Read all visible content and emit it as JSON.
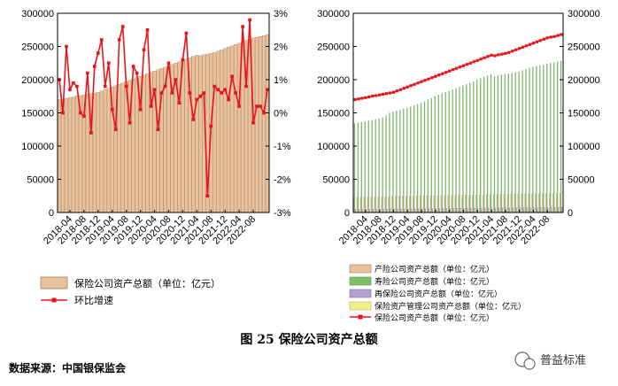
{
  "caption": "图 25   保险公司资产总额",
  "source": "数据来源：中国银保监会",
  "watermark": "普益标准",
  "colors": {
    "total_bar": "#e9c29b",
    "total_bar_edge": "#9c7f63",
    "growth_line": "#e8141c",
    "property": "#e9c29b",
    "life": "#7fbf6a",
    "reinsurance": "#b1a2cf",
    "asset_mgmt": "#f2f08a",
    "frame": "#000000"
  },
  "chart_data": [
    {
      "type": "bar",
      "title": "",
      "x_tick_labels": [
        "2018-04",
        "2018-08",
        "2018-12",
        "2019-04",
        "2019-08",
        "2019-12",
        "2020-04",
        "2020-08",
        "2020-12",
        "2021-04",
        "2021-08",
        "2021-12",
        "2022-04",
        "2022-08"
      ],
      "x_start": "2018-01",
      "y_left": {
        "ticks": [
          0,
          50000,
          100000,
          150000,
          200000,
          250000,
          300000
        ],
        "ylim": [
          0,
          300000
        ]
      },
      "y_right": {
        "ticks": [
          "-3%",
          "-2%",
          "-1%",
          "0%",
          "1%",
          "2%",
          "3%"
        ],
        "ylim": [
          -3,
          3
        ]
      },
      "legend": [
        "保险公司资产总额（单位：亿元）",
        "环比增速"
      ],
      "series": [
        {
          "name": "保险公司资产总额（单位：亿元）",
          "type": "bar",
          "values": [
            170000,
            171000,
            172000,
            173000,
            174000,
            175500,
            176000,
            177000,
            178000,
            179000,
            180000,
            181000,
            183000,
            185000,
            187000,
            189000,
            191000,
            193000,
            195000,
            197000,
            199000,
            201000,
            203000,
            205000,
            207000,
            209000,
            211000,
            213000,
            215000,
            217000,
            219000,
            221000,
            223000,
            225000,
            227000,
            229000,
            231000,
            233000,
            235000,
            237000,
            236000,
            237500,
            238500,
            239500,
            241000,
            243000,
            245000,
            247000,
            249000,
            251000,
            253000,
            255000,
            257000,
            259000,
            261000,
            263000,
            264000,
            265000,
            266500,
            268000
          ]
        },
        {
          "name": "环比增速",
          "type": "line",
          "axis": "right",
          "values": [
            1.0,
            0.0,
            2.0,
            0.7,
            0.9,
            0.8,
            0.0,
            -0.1,
            1.2,
            -0.6,
            1.4,
            1.8,
            2.2,
            0.8,
            1.5,
            0.1,
            -0.5,
            2.2,
            2.6,
            0.8,
            -0.3,
            1.4,
            1.2,
            0.1,
            1.9,
            2.5,
            0.2,
            0.7,
            -0.5,
            0.6,
            0.8,
            1.5,
            0.6,
            1.0,
            0.3,
            1.6,
            2.4,
            0.6,
            -0.2,
            0.4,
            0.5,
            0.6,
            -2.5,
            -0.4,
            0.8,
            0.7,
            0.6,
            0.7,
            0.4,
            1.1,
            0.6,
            0.2,
            2.6,
            0.8,
            2.8,
            -0.3,
            0.2,
            0.2,
            0.0,
            0.7
          ]
        }
      ]
    },
    {
      "type": "bar",
      "title": "",
      "x_tick_labels": [
        "2018-04",
        "2018-08",
        "2018-12",
        "2019-04",
        "2019-08",
        "2019-12",
        "2020-04",
        "2020-08",
        "2020-12",
        "2021-04",
        "2021-08",
        "2021-12",
        "2022-04",
        "2022-08"
      ],
      "x_start": "2018-01",
      "y_left": {
        "ticks": [
          0,
          50000,
          100000,
          150000,
          200000,
          250000,
          300000
        ],
        "ylim": [
          0,
          300000
        ]
      },
      "y_right": {
        "ticks": [
          0,
          50000,
          100000,
          150000,
          200000,
          250000,
          300000
        ],
        "ylim": [
          0,
          300000
        ]
      },
      "legend": [
        "产险公司资产总额（单位：亿元）",
        "寿险公司资产总额（单位：亿元）",
        "再保险公司资产总额（单位：亿元）",
        "保险资产管理公司资产总额（单位：亿元）",
        "保险公司资产总额（单位：亿元）"
      ],
      "series": [
        {
          "name": "产险公司资产总额（单位：亿元）",
          "type": "bar",
          "values": [
            23000,
            23100,
            23200,
            23300,
            23400,
            23500,
            23600,
            23700,
            23800,
            23900,
            24000,
            24100,
            24200,
            24300,
            24400,
            24500,
            24600,
            24700,
            24800,
            24900,
            25000,
            25100,
            25200,
            25300,
            25400,
            25500,
            25600,
            25700,
            25800,
            25900,
            26000,
            26100,
            26200,
            26300,
            26400,
            26500,
            26600,
            26700,
            26800,
            26900,
            27000,
            27100,
            27200,
            27300,
            27400,
            27500,
            27600,
            27700,
            27800,
            27900,
            28000,
            28100,
            28200,
            28300,
            28400,
            28500,
            28600,
            28700,
            28800,
            28900
          ]
        },
        {
          "name": "寿险公司资产总额（单位：亿元）",
          "type": "bar",
          "values": [
            134000,
            135000,
            136000,
            137000,
            138000,
            139000,
            140000,
            141000,
            143000,
            146000,
            150000,
            152000,
            153000,
            154000,
            156000,
            157000,
            159000,
            161000,
            163000,
            165000,
            167000,
            170000,
            172000,
            175000,
            177000,
            179000,
            181000,
            183000,
            185000,
            187000,
            189000,
            191000,
            193000,
            195000,
            197000,
            200000,
            202000,
            204000,
            206000,
            208000,
            205000,
            206000,
            207000,
            208000,
            209000,
            210000,
            211000,
            212000,
            214000,
            216000,
            218000,
            219000,
            220000,
            221000,
            222000,
            224000,
            225000,
            226000,
            227000,
            228000
          ]
        },
        {
          "name": "再保险公司资产总额（单位：亿元）",
          "type": "bar",
          "values": [
            5000,
            5000,
            5100,
            5100,
            5200,
            5200,
            5300,
            5300,
            5400,
            5400,
            5500,
            5500,
            5600,
            5600,
            5700,
            5700,
            5800,
            5800,
            5900,
            5900,
            6000,
            6000,
            6100,
            6100,
            6200,
            6200,
            6300,
            6300,
            6400,
            6400,
            6500,
            6500,
            6600,
            6600,
            6700,
            6700,
            6800,
            6800,
            6900,
            6900,
            7000,
            7000,
            7100,
            7100,
            7200,
            7200,
            7300,
            7300,
            7400,
            7400,
            7500,
            7500,
            7600,
            7600,
            7700,
            7700,
            7800,
            7800,
            7900,
            7900
          ]
        },
        {
          "name": "保险资产管理公司资产总额（单位：亿元）",
          "type": "bar",
          "values": [
            800,
            800,
            800,
            800,
            850,
            850,
            850,
            850,
            900,
            900,
            900,
            900,
            950,
            950,
            950,
            950,
            1000,
            1000,
            1000,
            1000,
            1050,
            1050,
            1050,
            1050,
            1100,
            1100,
            1100,
            1100,
            1150,
            1150,
            1150,
            1150,
            1200,
            1200,
            1200,
            1200,
            1250,
            1250,
            1250,
            1250,
            1300,
            1300,
            1300,
            1300,
            1350,
            1350,
            1350,
            1350,
            1400,
            1400,
            1400,
            1400,
            1450,
            1450,
            1450,
            1450,
            1500,
            1500,
            1500,
            1500
          ]
        },
        {
          "name": "保险公司资产总额（单位：亿元）",
          "type": "line",
          "axis": "right",
          "values": [
            170000,
            171000,
            172000,
            173000,
            174000,
            175500,
            176000,
            177000,
            178000,
            179000,
            180000,
            181000,
            183000,
            185000,
            187000,
            189000,
            191000,
            193000,
            195000,
            197000,
            199000,
            201000,
            203000,
            205000,
            207000,
            209000,
            211000,
            213000,
            215000,
            217000,
            219000,
            221000,
            223000,
            225000,
            227000,
            229000,
            231000,
            233000,
            235000,
            237000,
            236000,
            237500,
            238500,
            239500,
            241000,
            243000,
            245000,
            247000,
            249000,
            251000,
            253000,
            255000,
            257000,
            259000,
            261000,
            263000,
            264000,
            265000,
            266500,
            268000
          ]
        }
      ]
    }
  ]
}
